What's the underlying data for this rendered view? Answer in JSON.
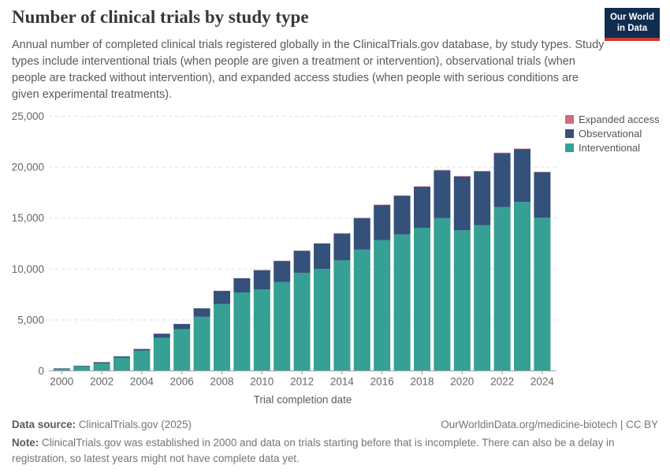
{
  "header": {
    "title": "Number of clinical trials by study type",
    "subtitle": "Annual number of completed clinical trials registered globally in the ClinicalTrials.gov database, by study types. Study types include interventional trials (when people are given a treatment or intervention), observational trials (when people are tracked without intervention), and expanded access studies (when people with serious conditions are given experimental treatments).",
    "logo": {
      "line1": "Our World",
      "line2": "in Data",
      "bg_color": "#102d50",
      "accent_color": "#cf3a30"
    }
  },
  "chart_data": {
    "type": "bar",
    "stacked": true,
    "title": "Number of clinical trials by study type",
    "xlabel": "Trial completion date",
    "ylabel": "",
    "ylim": [
      0,
      25000
    ],
    "yticks": [
      0,
      5000,
      10000,
      15000,
      20000,
      25000
    ],
    "ytick_labels": [
      "0",
      "5,000",
      "10,000",
      "15,000",
      "20,000",
      "25,000"
    ],
    "xtick_labels": [
      "2000",
      "2002",
      "2004",
      "2006",
      "2008",
      "2010",
      "2012",
      "2014",
      "2016",
      "2018",
      "2020",
      "2022",
      "2024"
    ],
    "grid": "horizontal-dashed",
    "legend_position": "top-right",
    "categories": [
      2000,
      2001,
      2002,
      2003,
      2004,
      2005,
      2006,
      2007,
      2008,
      2009,
      2010,
      2011,
      2012,
      2013,
      2014,
      2015,
      2016,
      2017,
      2018,
      2019,
      2020,
      2021,
      2022,
      2023,
      2024
    ],
    "series": [
      {
        "name": "Interventional",
        "color": "#35a093",
        "values": [
          180,
          430,
          730,
          1280,
          1980,
          3250,
          4100,
          5310,
          6570,
          7700,
          8000,
          8720,
          9620,
          10000,
          10850,
          11920,
          12850,
          13400,
          14050,
          15000,
          13800,
          14300,
          16100,
          16600,
          15050
        ]
      },
      {
        "name": "Observational",
        "color": "#34517b",
        "values": [
          60,
          70,
          120,
          140,
          170,
          400,
          500,
          830,
          1280,
          1390,
          1890,
          2070,
          2170,
          2500,
          2640,
          3080,
          3440,
          3790,
          4040,
          4690,
          5290,
          5290,
          5290,
          5190,
          4470
        ]
      },
      {
        "name": "Expanded access",
        "color": "#ce6d81",
        "values": [
          2,
          3,
          4,
          5,
          6,
          8,
          10,
          12,
          15,
          18,
          20,
          25,
          28,
          30,
          32,
          35,
          38,
          40,
          42,
          45,
          48,
          45,
          42,
          40,
          35
        ]
      }
    ],
    "axis_color": "#999999",
    "gridline_color": "#e0e0e0",
    "tick_label_color": "#666666"
  },
  "legend": {
    "items": [
      {
        "label": "Expanded access",
        "color": "#ce6d81"
      },
      {
        "label": "Observational",
        "color": "#34517b"
      },
      {
        "label": "Interventional",
        "color": "#35a093"
      }
    ]
  },
  "footer": {
    "source_label": "Data source:",
    "source_value": "ClinicalTrials.gov (2025)",
    "link": "OurWorldinData.org/medicine-biotech | CC BY",
    "note_label": "Note:",
    "note_text": "ClinicalTrials.gov was established in 2000 and data on trials starting before that is incomplete. There can also be a delay in registration, so latest years might not have complete data yet."
  }
}
